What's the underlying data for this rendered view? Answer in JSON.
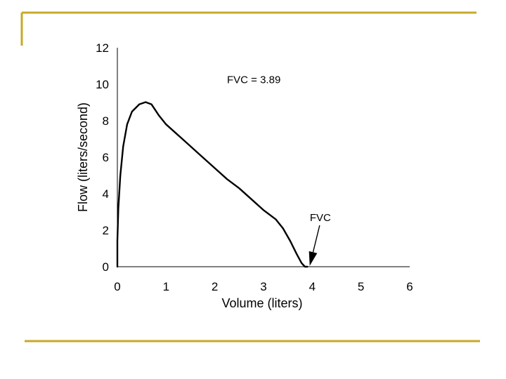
{
  "slide": {
    "frame_color": "#C8A82A"
  },
  "chart_data": {
    "type": "line",
    "title": "",
    "xlabel": "Volume (liters)",
    "ylabel": "Flow (liters/second)",
    "xlim": [
      0,
      6
    ],
    "ylim": [
      0,
      12
    ],
    "x_ticks": [
      0,
      1,
      2,
      3,
      4,
      5,
      6
    ],
    "y_ticks": [
      0,
      2,
      4,
      6,
      8,
      10,
      12
    ],
    "grid": false,
    "series": [
      {
        "name": "Flow-volume loop",
        "color": "#000000",
        "points": [
          [
            0.0,
            0.0
          ],
          [
            0.0,
            1.4
          ],
          [
            0.02,
            3.2
          ],
          [
            0.06,
            5.0
          ],
          [
            0.12,
            6.6
          ],
          [
            0.2,
            7.8
          ],
          [
            0.3,
            8.5
          ],
          [
            0.45,
            8.9
          ],
          [
            0.58,
            9.02
          ],
          [
            0.7,
            8.9
          ],
          [
            0.85,
            8.3
          ],
          [
            1.0,
            7.8
          ],
          [
            1.25,
            7.2
          ],
          [
            1.5,
            6.6
          ],
          [
            1.75,
            6.0
          ],
          [
            2.0,
            5.4
          ],
          [
            2.25,
            4.8
          ],
          [
            2.5,
            4.3
          ],
          [
            2.75,
            3.7
          ],
          [
            3.0,
            3.1
          ],
          [
            3.25,
            2.6
          ],
          [
            3.4,
            2.1
          ],
          [
            3.55,
            1.4
          ],
          [
            3.68,
            0.7
          ],
          [
            3.78,
            0.2
          ],
          [
            3.85,
            0.0
          ],
          [
            3.9,
            0.0
          ]
        ]
      }
    ],
    "annotations": [
      {
        "text": "FVC = 3.89",
        "x": 2.25,
        "y": 10.05
      },
      {
        "text": "FVC",
        "x": 3.95,
        "y": 2.5,
        "arrow_to": [
          3.89,
          0.05
        ]
      }
    ]
  }
}
